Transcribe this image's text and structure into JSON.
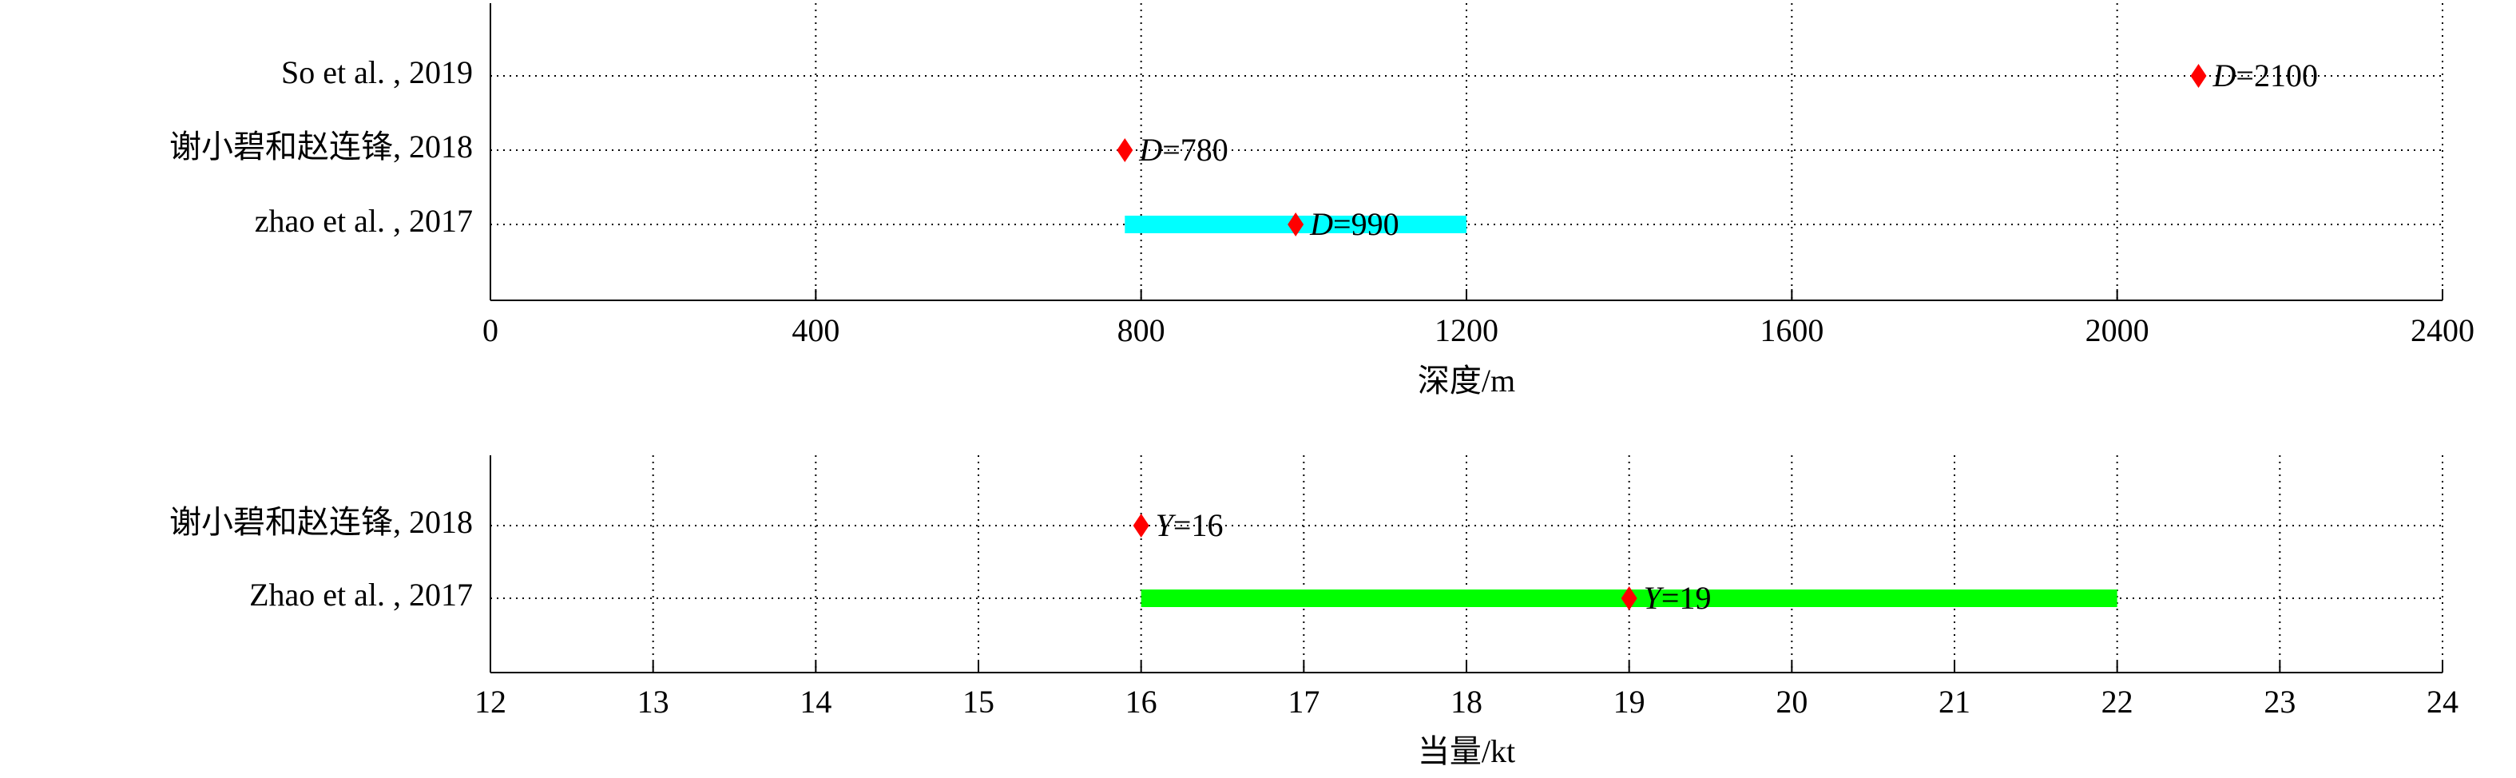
{
  "chart_data": [
    {
      "type": "dot_range",
      "categories": [
        "So et al. , 2019",
        "谢小碧和赵连锋, 2018",
        "zhao et al. , 2017"
      ],
      "values": [
        2100,
        780,
        990
      ],
      "value_labels": [
        "D=2100",
        "D=780",
        "D=990"
      ],
      "range_low": [
        null,
        null,
        780
      ],
      "range_high": [
        null,
        null,
        1200
      ],
      "color": "#ff0000",
      "range_color": "#00ffff",
      "xlim": [
        0,
        2400
      ],
      "xticks": [
        0,
        400,
        800,
        1200,
        1600,
        2000,
        2400
      ],
      "xlabel": "深度/m",
      "grid": true
    },
    {
      "type": "dot_range",
      "categories": [
        "谢小碧和赵连锋, 2018",
        "Zhao et al. , 2017"
      ],
      "values": [
        16,
        19
      ],
      "value_labels": [
        "Y=16",
        "Y=19"
      ],
      "range_low": [
        null,
        16
      ],
      "range_high": [
        null,
        22
      ],
      "color": "#ff0000",
      "range_color": "#00ff00",
      "xlim": [
        12,
        24
      ],
      "xticks": [
        12,
        13,
        14,
        15,
        16,
        17,
        18,
        19,
        20,
        21,
        22,
        23,
        24
      ],
      "xlabel": "当量/kt",
      "grid": true
    }
  ]
}
